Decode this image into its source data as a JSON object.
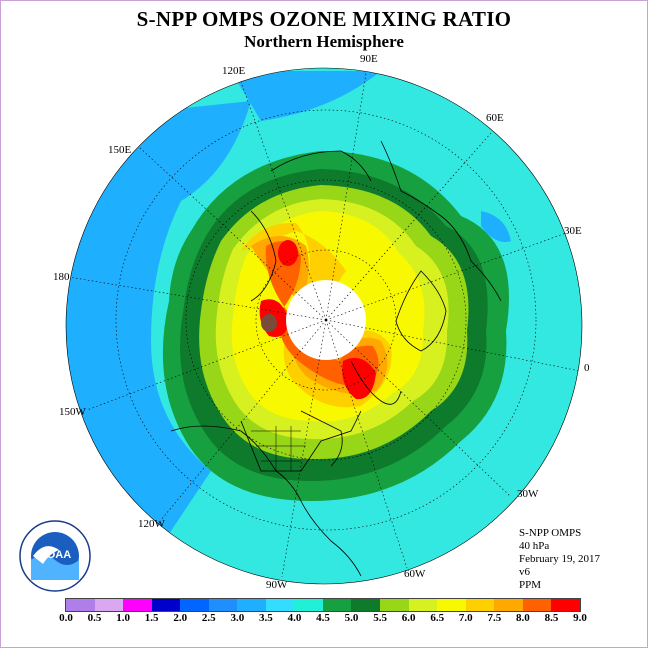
{
  "title": "S-NPP OMPS OZONE MIXING RATIO",
  "subtitle": "Northern Hemisphere",
  "longitude_labels": {
    "deg90e": "90E",
    "deg120e": "120E",
    "deg60e": "60E",
    "deg150e": "150E",
    "deg30e": "30E",
    "deg180": "180",
    "deg0": "0",
    "deg150w": "150W",
    "deg30w": "30W",
    "deg120w": "120W",
    "deg60w": "60W",
    "deg90w": "90W"
  },
  "info": {
    "instrument": "S-NPP OMPS",
    "pressure": "40 hPa",
    "date": "February 19, 2017",
    "version": "v6",
    "units": "PPM"
  },
  "logo": {
    "text": "NOAA",
    "icon": "noaa-logo"
  },
  "color_scale": {
    "ticks": [
      "0.0",
      "0.5",
      "1.0",
      "1.5",
      "2.0",
      "2.5",
      "3.0",
      "3.5",
      "4.0",
      "4.5",
      "5.0",
      "5.5",
      "6.0",
      "6.5",
      "7.0",
      "7.5",
      "8.0",
      "8.5",
      "9.0"
    ],
    "colors": [
      "#b07ee8",
      "#d9a8f0",
      "#ff00ff",
      "#0000cd",
      "#0066ff",
      "#1f8fff",
      "#1eb0ff",
      "#33ddff",
      "#20f0d8",
      "#17a040",
      "#0e7a2c",
      "#98d618",
      "#d6f020",
      "#f8f800",
      "#ffd000",
      "#ffa800",
      "#ff6000",
      "#ff0000",
      "#7a4a3a"
    ]
  },
  "colors": {
    "ocean_bg": "#1eb0ff",
    "cyan": "#33e8e0",
    "polar_hole": "#ffffff",
    "coastline": "#000000"
  }
}
